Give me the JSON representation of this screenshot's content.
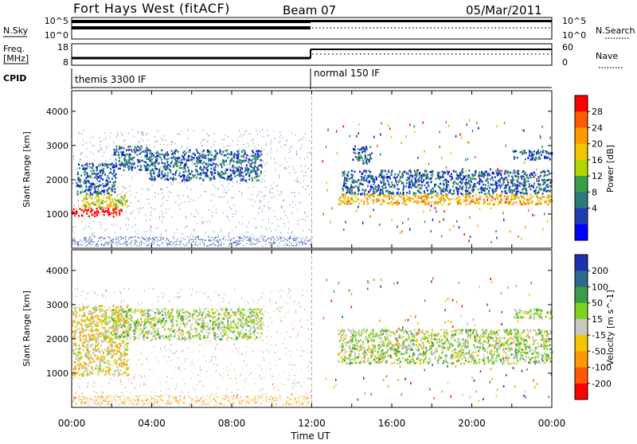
{
  "header": {
    "station": "Fort Hays West (fitACF)",
    "beam": "Beam 07",
    "date": "05/Mar/2011"
  },
  "strips": {
    "nsky_label": "N.Sky",
    "nsky_ticks": [
      "10^5",
      "10^0"
    ],
    "nsearch_label": "N.Search",
    "nsearch_ticks": [
      "10^5",
      "10^0"
    ],
    "freq_label_1": "Freq.",
    "freq_label_2": "[MHz]",
    "freq_ticks": [
      "18",
      "8"
    ],
    "nave_label": "Nave",
    "nave_ticks": [
      "60",
      "0"
    ],
    "cpid_label": "CPID",
    "cpid_segments": [
      "themis 3300 IF",
      "normal 150 IF"
    ]
  },
  "chart_data": [
    {
      "type": "heatmap",
      "quantity": "Power",
      "ylabel": "Slant Range [km]",
      "yticks": [
        1000,
        2000,
        3000,
        4000
      ],
      "ylim": [
        0,
        4600
      ],
      "xlim_hours": [
        0,
        24
      ],
      "colorbar_label": "Power [dB]",
      "colorbar_ticks": [
        "28",
        "24",
        "20",
        "16",
        "12",
        "8",
        "4"
      ],
      "colorbar_colors": [
        "#ff0000",
        "#ff5a00",
        "#ff9a00",
        "#f2c500",
        "#b6d400",
        "#3a9d4a",
        "#2a7b78",
        "#1f3fae",
        "#0000ff"
      ],
      "echo_regions": [
        {
          "t0": 0.0,
          "t1": 2.5,
          "r0": 950,
          "r1": 1200,
          "level": 0
        },
        {
          "t0": 0.5,
          "t1": 2.8,
          "r0": 1200,
          "r1": 1600,
          "level": 4
        },
        {
          "t0": 0.2,
          "t1": 2.2,
          "r0": 1600,
          "r1": 2500,
          "level": 7
        },
        {
          "t0": 2.0,
          "t1": 3.8,
          "r0": 2300,
          "r1": 3000,
          "level": 7
        },
        {
          "t0": 3.8,
          "t1": 9.5,
          "r0": 2000,
          "r1": 2900,
          "level": 7
        },
        {
          "t0": 13.3,
          "t1": 24.0,
          "r0": 1300,
          "r1": 1600,
          "level": 3
        },
        {
          "t0": 13.5,
          "t1": 24.0,
          "r0": 1600,
          "r1": 2300,
          "level": 7
        },
        {
          "t0": 14.0,
          "t1": 15.0,
          "r0": 2500,
          "r1": 3000,
          "level": 7
        },
        {
          "t0": 22.0,
          "t1": 24.0,
          "r0": 2600,
          "r1": 2900,
          "level": 7
        }
      ]
    },
    {
      "type": "heatmap",
      "quantity": "Velocity",
      "ylabel": "Slant Range [km]",
      "yticks": [
        1000,
        2000,
        3000,
        4000
      ],
      "ylim": [
        0,
        4600
      ],
      "xlim_hours": [
        0,
        24
      ],
      "xticks": [
        "00:00",
        "04:00",
        "08:00",
        "12:00",
        "16:00",
        "20:00",
        "00:00"
      ],
      "xlabel": "Time UT",
      "colorbar_label": "Velocity [m s^-1]",
      "colorbar_ticks": [
        "200",
        "100",
        "50",
        "15",
        "-15",
        "-50",
        "-100",
        "-200"
      ],
      "colorbar_colors": [
        "#1f2fae",
        "#2a6a8a",
        "#3a9d4a",
        "#7ed321",
        "#c8c8c0",
        "#f2c500",
        "#ff9a00",
        "#ff5a00",
        "#ff0000"
      ],
      "echo_regions": [
        {
          "t0": 0.0,
          "t1": 2.8,
          "r0": 950,
          "r1": 3000,
          "level": 5
        },
        {
          "t0": 2.0,
          "t1": 9.5,
          "r0": 2000,
          "r1": 2900,
          "level": 4
        },
        {
          "t0": 13.3,
          "t1": 24.0,
          "r0": 1300,
          "r1": 2300,
          "level": 4
        },
        {
          "t0": 22.0,
          "t1": 24.0,
          "r0": 2600,
          "r1": 2900,
          "level": 4
        }
      ]
    }
  ]
}
